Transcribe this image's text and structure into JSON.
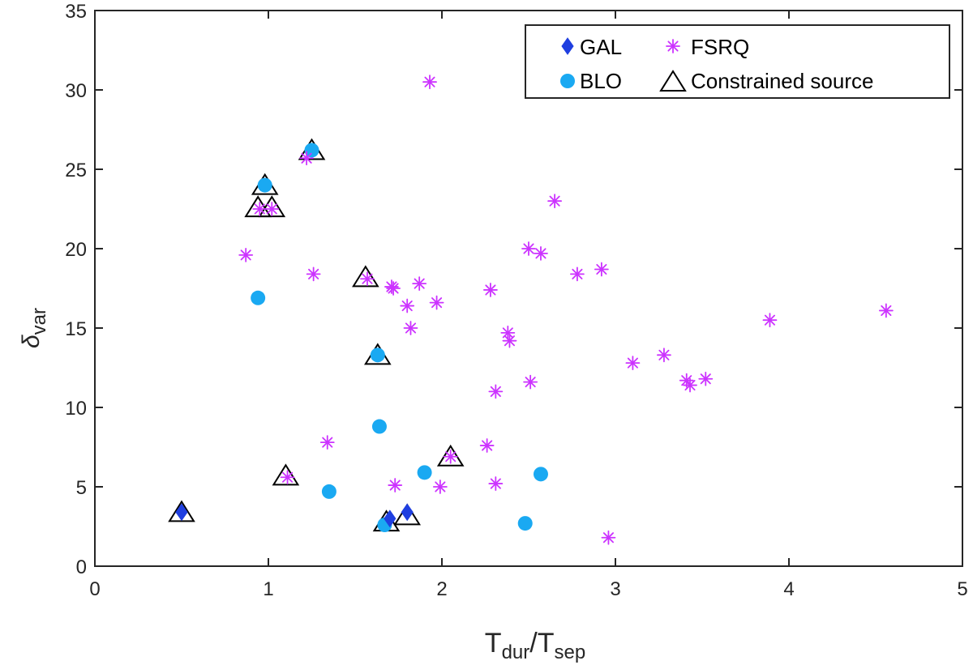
{
  "chart_data": {
    "type": "scatter",
    "xlabel": {
      "main": "T",
      "sub1": "dur",
      "slash": "/T",
      "sub2": "sep"
    },
    "ylabel": {
      "main": "δ",
      "sub": "var"
    },
    "xlim": [
      0,
      5
    ],
    "ylim": [
      0,
      35
    ],
    "xticks": [
      "0",
      "1",
      "2",
      "3",
      "4",
      "5"
    ],
    "yticks": [
      "0",
      "5",
      "10",
      "15",
      "20",
      "25",
      "30",
      "35"
    ],
    "grid": false,
    "legend_position": "top-right",
    "colors": {
      "GAL": "#1f3fe0",
      "BLO": "#1aa9f2",
      "FSRQ": "#cc33ff",
      "Constrained": "#000000"
    },
    "series": [
      {
        "name": "GAL",
        "marker": "diamond",
        "points": [
          [
            0.5,
            3.4
          ],
          [
            1.7,
            3.0
          ],
          [
            1.8,
            3.4
          ]
        ]
      },
      {
        "name": "BLO",
        "marker": "circle",
        "points": [
          [
            0.94,
            16.9
          ],
          [
            1.35,
            4.7
          ],
          [
            1.63,
            13.3
          ],
          [
            1.64,
            8.8
          ],
          [
            1.67,
            2.6
          ],
          [
            1.9,
            5.9
          ],
          [
            2.48,
            2.7
          ],
          [
            2.57,
            5.8
          ],
          [
            0.98,
            24.0
          ],
          [
            1.25,
            26.2
          ]
        ]
      },
      {
        "name": "FSRQ",
        "marker": "asterisk",
        "points": [
          [
            1.93,
            30.5
          ],
          [
            1.22,
            25.7
          ],
          [
            2.65,
            23.0
          ],
          [
            0.95,
            22.5
          ],
          [
            1.02,
            22.5
          ],
          [
            2.5,
            20.0
          ],
          [
            2.57,
            19.7
          ],
          [
            0.87,
            19.6
          ],
          [
            1.26,
            18.4
          ],
          [
            2.78,
            18.4
          ],
          [
            2.92,
            18.7
          ],
          [
            1.57,
            18.1
          ],
          [
            1.71,
            17.6
          ],
          [
            1.72,
            17.5
          ],
          [
            1.87,
            17.8
          ],
          [
            2.28,
            17.4
          ],
          [
            1.8,
            16.4
          ],
          [
            1.97,
            16.6
          ],
          [
            1.82,
            15.0
          ],
          [
            2.38,
            14.7
          ],
          [
            2.39,
            14.2
          ],
          [
            3.1,
            12.8
          ],
          [
            3.28,
            13.3
          ],
          [
            3.41,
            11.7
          ],
          [
            3.43,
            11.4
          ],
          [
            3.52,
            11.8
          ],
          [
            3.89,
            15.5
          ],
          [
            4.56,
            16.1
          ],
          [
            2.31,
            11.0
          ],
          [
            2.51,
            11.6
          ],
          [
            1.34,
            7.8
          ],
          [
            2.26,
            7.6
          ],
          [
            2.05,
            6.9
          ],
          [
            1.11,
            5.6
          ],
          [
            1.73,
            5.1
          ],
          [
            1.99,
            5.0
          ],
          [
            2.31,
            5.2
          ],
          [
            2.96,
            1.8
          ]
        ]
      },
      {
        "name": "Constrained source",
        "marker": "triangle",
        "points": [
          [
            0.5,
            3.4
          ],
          [
            0.94,
            22.6
          ],
          [
            1.02,
            22.6
          ],
          [
            0.98,
            24.0
          ],
          [
            1.25,
            26.2
          ],
          [
            1.56,
            18.2
          ],
          [
            1.63,
            13.3
          ],
          [
            1.1,
            5.7
          ],
          [
            1.68,
            2.8
          ],
          [
            1.8,
            3.2
          ],
          [
            2.05,
            6.9
          ]
        ]
      }
    ],
    "legend_entries": [
      "GAL",
      "FSRQ",
      "BLO",
      "Constrained source"
    ]
  }
}
